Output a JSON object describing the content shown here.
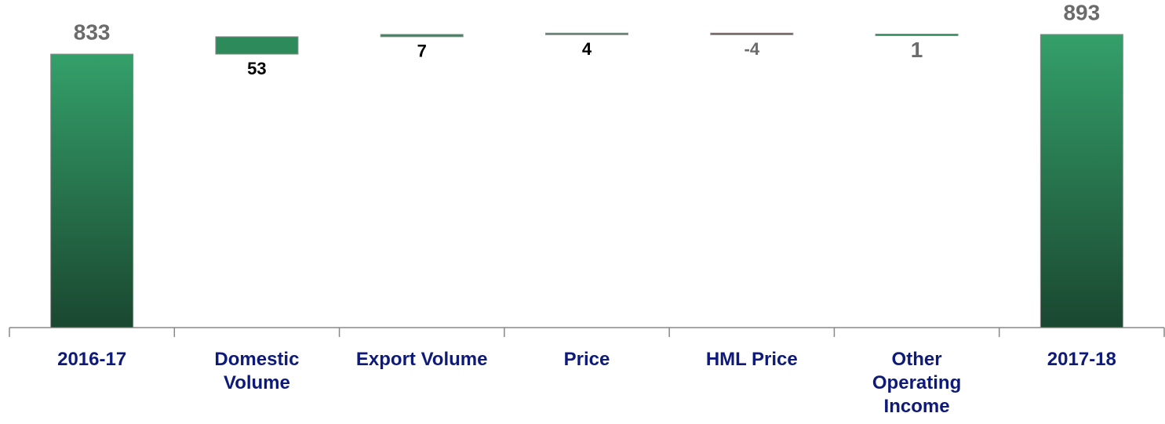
{
  "chart_data": {
    "type": "waterfall",
    "categories": [
      "2016-17",
      "Domestic Volume",
      "Export Volume",
      "Price",
      "HML Price",
      "Other Operating Income",
      "2017-18"
    ],
    "values": [
      833,
      53,
      7,
      4,
      -4,
      1,
      893
    ],
    "ylim": [
      0,
      900
    ],
    "colors": {
      "total_top": "#34a06a",
      "total_bottom": "#1a4730",
      "increase": "#2d8a5a",
      "decrease": "#7a3b3b",
      "edge": "#8a8a8a"
    },
    "label_colors": [
      "#6b6b6b",
      "#000000",
      "#000000",
      "#000000",
      "#6b6b6b",
      "#6b6b6b",
      "#6b6b6b"
    ],
    "category_color": "#0d1a7a"
  }
}
